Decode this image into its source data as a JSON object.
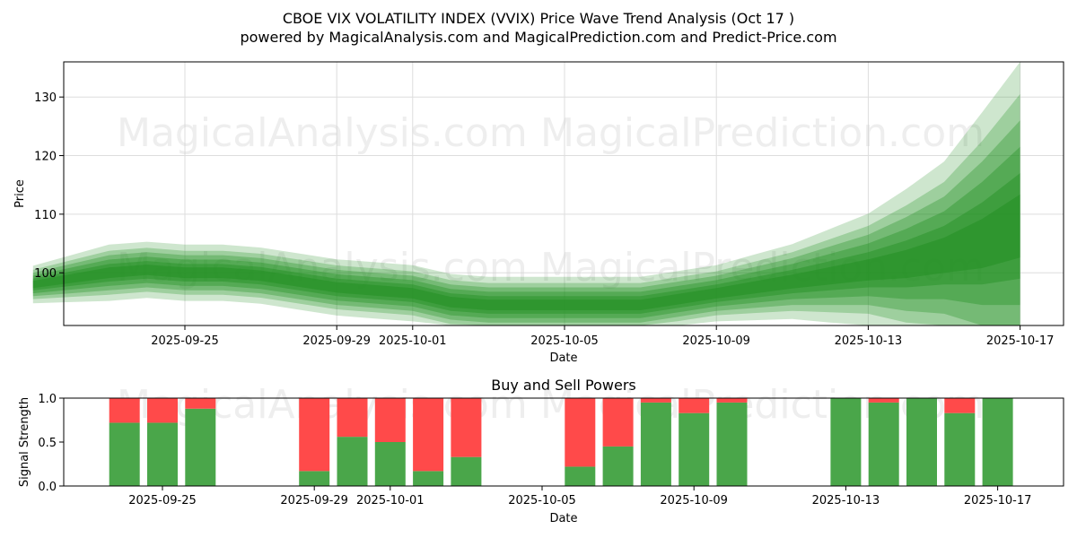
{
  "title_line1": "CBOE VIX VOLATILITY INDEX (VVIX) Price Wave Trend Analysis (Oct 17 )",
  "title_line2": "powered by MagicalAnalysis.com and MagicalPrediction.com and Predict-Price.com",
  "watermarks": [
    "MagicalAnalysis.com",
    "MagicalPrediction.com"
  ],
  "colors": {
    "buy": "#4aa64a",
    "sell": "#ff4a4a",
    "wave": "#1f8f1f"
  },
  "chart_data": [
    {
      "type": "area",
      "title": "",
      "xlabel": "Date",
      "ylabel": "Price",
      "x_start": "2025-09-21",
      "xlim": [
        "2025-09-21",
        "2025-10-18"
      ],
      "ylim": [
        91,
        136
      ],
      "xticks": [
        "2025-09-25",
        "2025-09-29",
        "2025-10-01",
        "2025-10-05",
        "2025-10-09",
        "2025-10-13",
        "2025-10-17"
      ],
      "yticks": [
        100,
        110,
        120,
        130
      ],
      "grid": true,
      "series": [
        {
          "x": [
            "2025-09-21",
            "2025-09-22",
            "2025-09-23",
            "2025-09-24",
            "2025-09-25",
            "2025-09-26",
            "2025-09-27",
            "2025-09-28",
            "2025-09-29",
            "2025-09-30",
            "2025-10-01",
            "2025-10-02",
            "2025-10-03",
            "2025-10-04",
            "2025-10-05",
            "2025-10-06",
            "2025-10-07",
            "2025-10-08",
            "2025-10-09",
            "2025-10-10",
            "2025-10-11",
            "2025-10-12",
            "2025-10-13",
            "2025-10-14",
            "2025-10-15",
            "2025-10-16",
            "2025-10-17"
          ],
          "center": [
            98,
            99,
            100,
            100.5,
            100,
            100,
            99.5,
            98.5,
            97.5,
            97,
            96.5,
            95,
            94.5,
            94.5,
            94.5,
            94.5,
            94.5,
            95.5,
            96.5,
            97.5,
            98.5,
            99.5,
            100.5,
            101.5,
            103,
            105,
            108
          ],
          "spread": [
            2,
            2.5,
            3,
            3,
            3,
            3,
            3,
            3,
            3,
            3,
            3,
            3,
            3,
            3,
            3,
            3,
            3,
            3,
            3,
            3.5,
            4,
            5,
            6,
            8,
            10,
            14,
            18
          ]
        }
      ]
    },
    {
      "type": "bar",
      "title": "Buy and Sell Powers",
      "xlabel": "Date",
      "ylabel": "Signal Strength",
      "ylim": [
        0,
        1
      ],
      "yticks": [
        "0.0",
        "0.5",
        "1.0"
      ],
      "xticks": [
        "2025-09-25",
        "2025-09-29",
        "2025-10-01",
        "2025-10-05",
        "2025-10-09",
        "2025-10-13",
        "2025-10-17"
      ],
      "legend": "none",
      "series": [
        {
          "name": "Buy",
          "values": [
            0.72,
            0.72,
            0.88,
            0.17,
            0.56,
            0.5,
            0.17,
            0.33,
            0.22,
            0.45,
            0.95,
            0.83,
            0.95,
            1.0,
            0.95,
            1.0,
            0.83,
            1.0
          ]
        },
        {
          "name": "Sell",
          "values": [
            0.28,
            0.28,
            0.12,
            0.83,
            0.44,
            0.5,
            0.83,
            0.67,
            0.78,
            0.55,
            0.05,
            0.17,
            0.05,
            0.0,
            0.05,
            0.0,
            0.17,
            0.0
          ]
        }
      ],
      "categories": [
        "2025-09-24",
        "2025-09-25",
        "2025-09-26",
        "2025-09-29",
        "2025-09-30",
        "2025-10-01",
        "2025-10-02",
        "2025-10-03",
        "2025-10-06",
        "2025-10-07",
        "2025-10-08",
        "2025-10-09",
        "2025-10-10",
        "2025-10-13",
        "2025-10-14",
        "2025-10-15",
        "2025-10-16",
        "2025-10-17"
      ]
    }
  ]
}
